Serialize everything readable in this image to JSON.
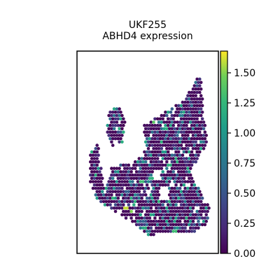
{
  "chart_data": {
    "type": "scatter",
    "title": "UKF255",
    "subtitle": "ABHD4 expression",
    "xlabel": "",
    "ylabel": "",
    "grid": false,
    "colormap": "viridis",
    "colorbar": {
      "min": 0.0,
      "max": 1.68,
      "ticks": [
        0.0,
        0.25,
        0.5,
        0.75,
        1.0,
        1.25,
        1.5
      ],
      "tick_labels": [
        "0.00",
        "0.25",
        "0.50",
        "0.75",
        "1.00",
        "1.25",
        "1.50"
      ]
    },
    "background_value": 0.0,
    "tissue_region": [
      [
        0.17,
        0.72
      ],
      [
        0.22,
        0.58
      ],
      [
        0.36,
        0.56
      ],
      [
        0.47,
        0.52
      ],
      [
        0.47,
        0.35
      ],
      [
        0.6,
        0.3
      ],
      [
        0.78,
        0.22
      ],
      [
        0.82,
        0.17
      ],
      [
        0.86,
        0.12
      ],
      [
        0.9,
        0.1
      ],
      [
        0.92,
        0.3
      ],
      [
        0.95,
        0.45
      ],
      [
        0.88,
        0.53
      ],
      [
        0.82,
        0.6
      ],
      [
        0.9,
        0.72
      ],
      [
        0.97,
        0.8
      ],
      [
        0.95,
        0.88
      ],
      [
        0.85,
        0.92
      ],
      [
        0.7,
        0.93
      ],
      [
        0.5,
        0.94
      ],
      [
        0.4,
        0.88
      ],
      [
        0.25,
        0.82
      ],
      [
        0.1,
        0.75
      ],
      [
        0.05,
        0.65
      ],
      [
        0.06,
        0.5
      ],
      [
        0.12,
        0.45
      ]
    ],
    "upper_left_lobe": [
      [
        0.2,
        0.28
      ],
      [
        0.28,
        0.26
      ],
      [
        0.33,
        0.32
      ],
      [
        0.3,
        0.45
      ],
      [
        0.22,
        0.47
      ],
      [
        0.18,
        0.38
      ]
    ],
    "highlight_points": [
      [
        0.52,
        0.32,
        1.6
      ],
      [
        0.55,
        0.34,
        1.4
      ],
      [
        0.45,
        0.34,
        1.0
      ],
      [
        0.62,
        0.37,
        1.1
      ],
      [
        0.72,
        0.55,
        1.2
      ],
      [
        0.58,
        0.6,
        1.4
      ],
      [
        0.45,
        0.66,
        1.3
      ],
      [
        0.33,
        0.8,
        1.6
      ],
      [
        0.38,
        0.81,
        1.5
      ],
      [
        0.52,
        0.64,
        1.2
      ],
      [
        0.82,
        0.87,
        1.0
      ],
      [
        0.7,
        0.92,
        1.3
      ],
      [
        0.3,
        0.72,
        0.9
      ],
      [
        0.25,
        0.5,
        0.8
      ],
      [
        0.62,
        0.5,
        1.0
      ],
      [
        0.9,
        0.45,
        0.9
      ],
      [
        0.4,
        0.48,
        1.1
      ],
      [
        0.75,
        0.3,
        0.8
      ],
      [
        0.15,
        0.6,
        0.9
      ],
      [
        0.66,
        0.58,
        1.2
      ]
    ],
    "holes": [
      [
        0.57,
        0.62,
        0.03
      ],
      [
        0.62,
        0.72,
        0.04
      ],
      [
        0.5,
        0.72,
        0.02
      ],
      [
        0.68,
        0.66,
        0.02
      ]
    ]
  }
}
